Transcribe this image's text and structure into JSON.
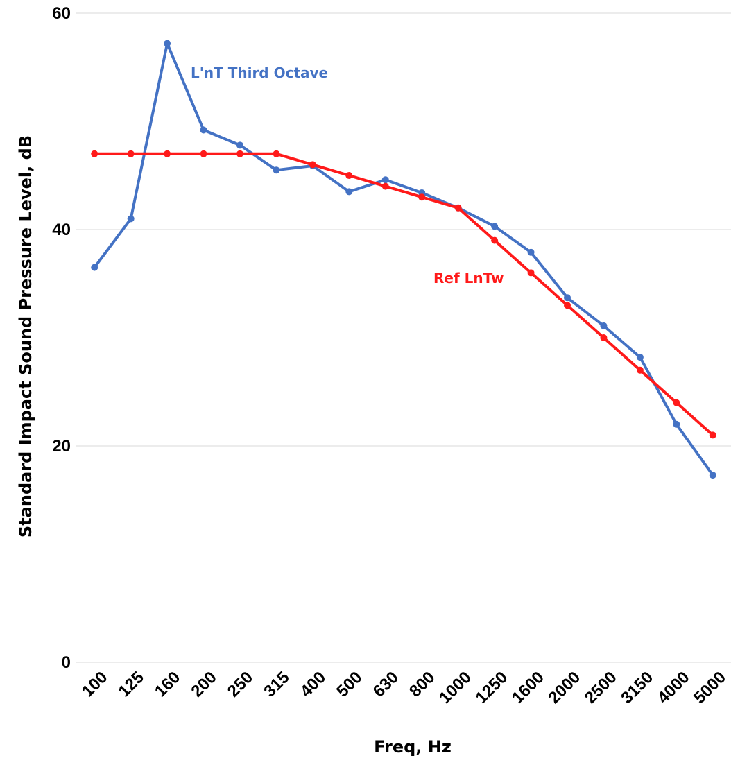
{
  "chart_data": {
    "type": "line",
    "title": "",
    "xlabel": "Freq, Hz",
    "ylabel": "Standard Impact Sound Pressure Level, dB",
    "categories": [
      "100",
      "125",
      "160",
      "200",
      "250",
      "315",
      "400",
      "500",
      "630",
      "800",
      "1000",
      "1250",
      "1600",
      "2000",
      "2500",
      "3150",
      "4000",
      "5000"
    ],
    "ylim": [
      0,
      60
    ],
    "yticks": [
      "0",
      "20",
      "40",
      "60"
    ],
    "grid": true,
    "legend": "none",
    "series": [
      {
        "name": "L'nT Third Octave",
        "color": "#4472C4",
        "values": [
          36.5,
          41,
          57.2,
          49.2,
          47.8,
          45.5,
          45.9,
          43.5,
          44.6,
          43.4,
          42,
          40.3,
          37.9,
          33.7,
          31.1,
          28.2,
          22,
          17.3
        ]
      },
      {
        "name": "Ref LnTw",
        "color": "#FF1A1A",
        "values": [
          47,
          47,
          47,
          47,
          47,
          47,
          46,
          45,
          44,
          43,
          42,
          39,
          36,
          33,
          30,
          27,
          24,
          21
        ]
      }
    ]
  }
}
